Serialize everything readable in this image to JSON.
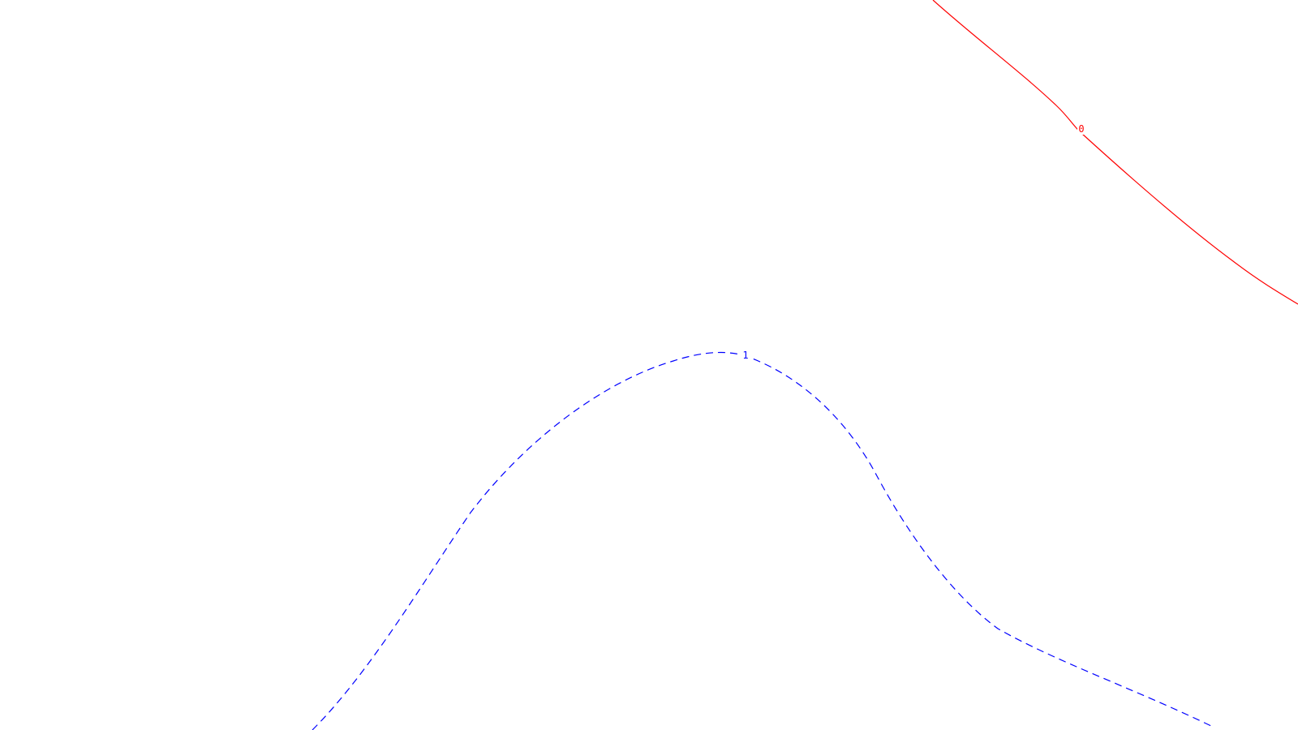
{
  "curves": [
    {
      "id": "curve-0",
      "label": "0",
      "color": "#ff0000",
      "line_style": "solid"
    },
    {
      "id": "curve-1",
      "label": "1",
      "color": "#0000ff",
      "line_style": "dashed"
    }
  ]
}
